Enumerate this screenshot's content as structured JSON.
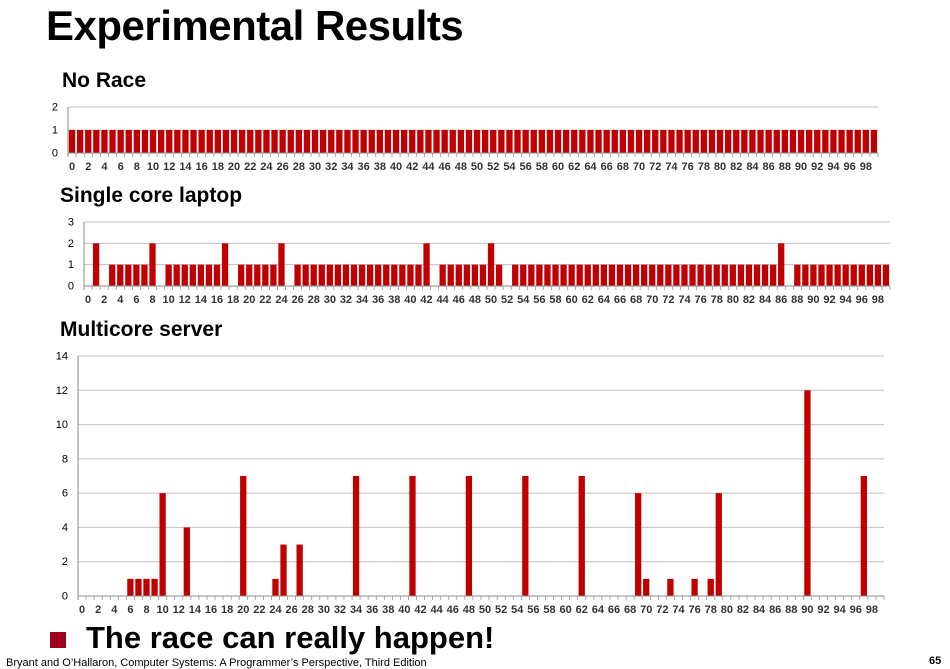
{
  "slide": {
    "title": "Experimental Results",
    "bullet": "The race can really happen!",
    "footer_left": "Bryant and O’Hallaron, Computer Systems: A Programmer’s Perspective, Third Edition",
    "page_number": "65"
  },
  "colors": {
    "bar": "#c00000",
    "bullet": "#a0001e",
    "grid": "#bfbfbf",
    "axis": "#888888"
  },
  "chart_data": [
    {
      "type": "bar",
      "title": "No Race",
      "x": [
        0,
        1,
        2,
        3,
        4,
        5,
        6,
        7,
        8,
        9,
        10,
        11,
        12,
        13,
        14,
        15,
        16,
        17,
        18,
        19,
        20,
        21,
        22,
        23,
        24,
        25,
        26,
        27,
        28,
        29,
        30,
        31,
        32,
        33,
        34,
        35,
        36,
        37,
        38,
        39,
        40,
        41,
        42,
        43,
        44,
        45,
        46,
        47,
        48,
        49,
        50,
        51,
        52,
        53,
        54,
        55,
        56,
        57,
        58,
        59,
        60,
        61,
        62,
        63,
        64,
        65,
        66,
        67,
        68,
        69,
        70,
        71,
        72,
        73,
        74,
        75,
        76,
        77,
        78,
        79,
        80,
        81,
        82,
        83,
        84,
        85,
        86,
        87,
        88,
        89,
        90,
        91,
        92,
        93,
        94,
        95,
        96,
        97,
        98,
        99
      ],
      "values": [
        1,
        1,
        1,
        1,
        1,
        1,
        1,
        1,
        1,
        1,
        1,
        1,
        1,
        1,
        1,
        1,
        1,
        1,
        1,
        1,
        1,
        1,
        1,
        1,
        1,
        1,
        1,
        1,
        1,
        1,
        1,
        1,
        1,
        1,
        1,
        1,
        1,
        1,
        1,
        1,
        1,
        1,
        1,
        1,
        1,
        1,
        1,
        1,
        1,
        1,
        1,
        1,
        1,
        1,
        1,
        1,
        1,
        1,
        1,
        1,
        1,
        1,
        1,
        1,
        1,
        1,
        1,
        1,
        1,
        1,
        1,
        1,
        1,
        1,
        1,
        1,
        1,
        1,
        1,
        1,
        1,
        1,
        1,
        1,
        1,
        1,
        1,
        1,
        1,
        1,
        1,
        1,
        1,
        1,
        1,
        1,
        1,
        1,
        1,
        1
      ],
      "xtick_labels": [
        "0",
        "2",
        "4",
        "6",
        "8",
        "10",
        "12",
        "14",
        "16",
        "18",
        "20",
        "22",
        "24",
        "26",
        "28",
        "30",
        "32",
        "34",
        "36",
        "38",
        "40",
        "42",
        "44",
        "46",
        "48",
        "50",
        "52",
        "54",
        "56",
        "58",
        "60",
        "62",
        "64",
        "66",
        "68",
        "70",
        "72",
        "74",
        "76",
        "78",
        "80",
        "82",
        "84",
        "86",
        "88",
        "90",
        "92",
        "94",
        "96",
        "98"
      ],
      "yticks": [
        "0",
        "1",
        "2"
      ],
      "ylim": [
        0,
        2
      ],
      "grid": true,
      "legend": false
    },
    {
      "type": "bar",
      "title": "Single core laptop",
      "x": [
        0,
        1,
        2,
        3,
        4,
        5,
        6,
        7,
        8,
        9,
        10,
        11,
        12,
        13,
        14,
        15,
        16,
        17,
        18,
        19,
        20,
        21,
        22,
        23,
        24,
        25,
        26,
        27,
        28,
        29,
        30,
        31,
        32,
        33,
        34,
        35,
        36,
        37,
        38,
        39,
        40,
        41,
        42,
        43,
        44,
        45,
        46,
        47,
        48,
        49,
        50,
        51,
        52,
        53,
        54,
        55,
        56,
        57,
        58,
        59,
        60,
        61,
        62,
        63,
        64,
        65,
        66,
        67,
        68,
        69,
        70,
        71,
        72,
        73,
        74,
        75,
        76,
        77,
        78,
        79,
        80,
        81,
        82,
        83,
        84,
        85,
        86,
        87,
        88,
        89,
        90,
        91,
        92,
        93,
        94,
        95,
        96,
        97,
        98,
        99
      ],
      "values": [
        0,
        2,
        0,
        1,
        1,
        1,
        1,
        1,
        2,
        0,
        1,
        1,
        1,
        1,
        1,
        1,
        1,
        2,
        0,
        1,
        1,
        1,
        1,
        1,
        2,
        0,
        1,
        1,
        1,
        1,
        1,
        1,
        1,
        1,
        1,
        1,
        1,
        1,
        1,
        1,
        1,
        1,
        2,
        0,
        1,
        1,
        1,
        1,
        1,
        1,
        2,
        1,
        0,
        1,
        1,
        1,
        1,
        1,
        1,
        1,
        1,
        1,
        1,
        1,
        1,
        1,
        1,
        1,
        1,
        1,
        1,
        1,
        1,
        1,
        1,
        1,
        1,
        1,
        1,
        1,
        1,
        1,
        1,
        1,
        1,
        1,
        2,
        0,
        1,
        1,
        1,
        1,
        1,
        1,
        1,
        1,
        1,
        1,
        1,
        1
      ],
      "xtick_labels": [
        "0",
        "2",
        "4",
        "6",
        "8",
        "10",
        "12",
        "14",
        "16",
        "18",
        "20",
        "22",
        "24",
        "26",
        "28",
        "30",
        "32",
        "34",
        "36",
        "38",
        "40",
        "42",
        "44",
        "46",
        "48",
        "50",
        "52",
        "54",
        "56",
        "58",
        "60",
        "62",
        "64",
        "66",
        "68",
        "70",
        "72",
        "74",
        "76",
        "78",
        "80",
        "82",
        "84",
        "86",
        "88",
        "90",
        "92",
        "94",
        "96",
        "98"
      ],
      "yticks": [
        "0",
        "1",
        "2",
        "3"
      ],
      "ylim": [
        0,
        3
      ],
      "grid": true,
      "legend": false
    },
    {
      "type": "bar",
      "title": "Multicore server",
      "x": [
        0,
        1,
        2,
        3,
        4,
        5,
        6,
        7,
        8,
        9,
        10,
        11,
        12,
        13,
        14,
        15,
        16,
        17,
        18,
        19,
        20,
        21,
        22,
        23,
        24,
        25,
        26,
        27,
        28,
        29,
        30,
        31,
        32,
        33,
        34,
        35,
        36,
        37,
        38,
        39,
        40,
        41,
        42,
        43,
        44,
        45,
        46,
        47,
        48,
        49,
        50,
        51,
        52,
        53,
        54,
        55,
        56,
        57,
        58,
        59,
        60,
        61,
        62,
        63,
        64,
        65,
        66,
        67,
        68,
        69,
        70,
        71,
        72,
        73,
        74,
        75,
        76,
        77,
        78,
        79,
        80,
        81,
        82,
        83,
        84,
        85,
        86,
        87,
        88,
        89,
        90,
        91,
        92,
        93,
        94,
        95,
        96,
        97,
        98,
        99
      ],
      "values": [
        0,
        0,
        0,
        0,
        0,
        0,
        1,
        1,
        1,
        1,
        6,
        0,
        0,
        4,
        0,
        0,
        0,
        0,
        0,
        0,
        7,
        0,
        0,
        0,
        1,
        3,
        0,
        3,
        0,
        0,
        0,
        0,
        0,
        0,
        7,
        0,
        0,
        0,
        0,
        0,
        0,
        7,
        0,
        0,
        0,
        0,
        0,
        0,
        7,
        0,
        0,
        0,
        0,
        0,
        0,
        7,
        0,
        0,
        0,
        0,
        0,
        0,
        7,
        0,
        0,
        0,
        0,
        0,
        0,
        6,
        1,
        0,
        0,
        1,
        0,
        0,
        1,
        0,
        1,
        6,
        0,
        0,
        0,
        0,
        0,
        0,
        0,
        0,
        0,
        0,
        12,
        0,
        0,
        0,
        0,
        0,
        0,
        7,
        0,
        0
      ],
      "xtick_labels": [
        "0",
        "2",
        "4",
        "6",
        "8",
        "10",
        "12",
        "14",
        "16",
        "18",
        "20",
        "22",
        "24",
        "26",
        "28",
        "30",
        "32",
        "34",
        "36",
        "38",
        "40",
        "42",
        "44",
        "46",
        "48",
        "50",
        "52",
        "54",
        "56",
        "58",
        "60",
        "62",
        "64",
        "66",
        "68",
        "70",
        "72",
        "74",
        "76",
        "78",
        "80",
        "82",
        "84",
        "86",
        "88",
        "90",
        "92",
        "94",
        "96",
        "98"
      ],
      "yticks": [
        "0",
        "2",
        "4",
        "6",
        "8",
        "10",
        "12",
        "14"
      ],
      "ylim": [
        0,
        14
      ],
      "grid": true,
      "legend": false
    }
  ]
}
